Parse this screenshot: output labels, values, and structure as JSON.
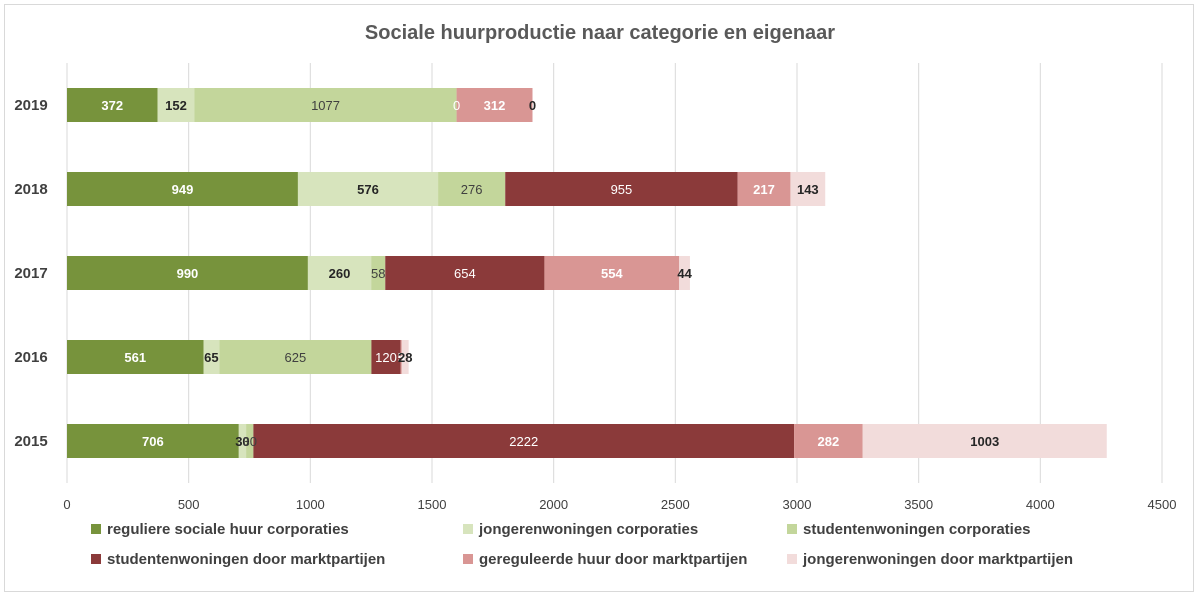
{
  "chart_data": {
    "type": "bar",
    "orientation": "horizontal",
    "stacked": true,
    "title": "Sociale huurproductie naar categorie en eigenaar",
    "categories": [
      "2019",
      "2018",
      "2017",
      "2016",
      "2015"
    ],
    "xlim": [
      0,
      4500
    ],
    "xticks": [
      "0",
      "500",
      "1000",
      "1500",
      "2000",
      "2500",
      "3000",
      "3500",
      "4000",
      "4500"
    ],
    "grid": true,
    "legend_position": "bottom",
    "series": [
      {
        "name": "reguliere sociale huur corporaties",
        "color": "#77933c",
        "label_color": "#ffffff",
        "label_bold": true,
        "values": [
          372,
          949,
          990,
          561,
          706
        ]
      },
      {
        "name": "jongerenwoningen corporaties",
        "color": "#d7e4bd",
        "label_color": "#262626",
        "label_bold": true,
        "values": [
          152,
          576,
          260,
          65,
          30
        ]
      },
      {
        "name": "studentenwoningen corporaties",
        "color": "#c3d69b",
        "label_color": "#404040",
        "label_bold": false,
        "values": [
          1077,
          276,
          58,
          625,
          30
        ]
      },
      {
        "name": "studentenwoningen door marktpartijen",
        "color": "#8b3a3a",
        "label_color": "#ffffff",
        "label_bold": false,
        "values": [
          0,
          955,
          654,
          120,
          2222
        ]
      },
      {
        "name": "gereguleerde huur door marktpartijen",
        "color": "#d99694",
        "label_color": "#ffffff",
        "label_bold": true,
        "values": [
          312,
          217,
          554,
          5,
          282
        ]
      },
      {
        "name": "jongerenwoningen door marktpartijen",
        "color": "#f2dcdb",
        "label_color": "#262626",
        "label_bold": true,
        "values": [
          0,
          143,
          44,
          28,
          1003
        ]
      }
    ]
  }
}
